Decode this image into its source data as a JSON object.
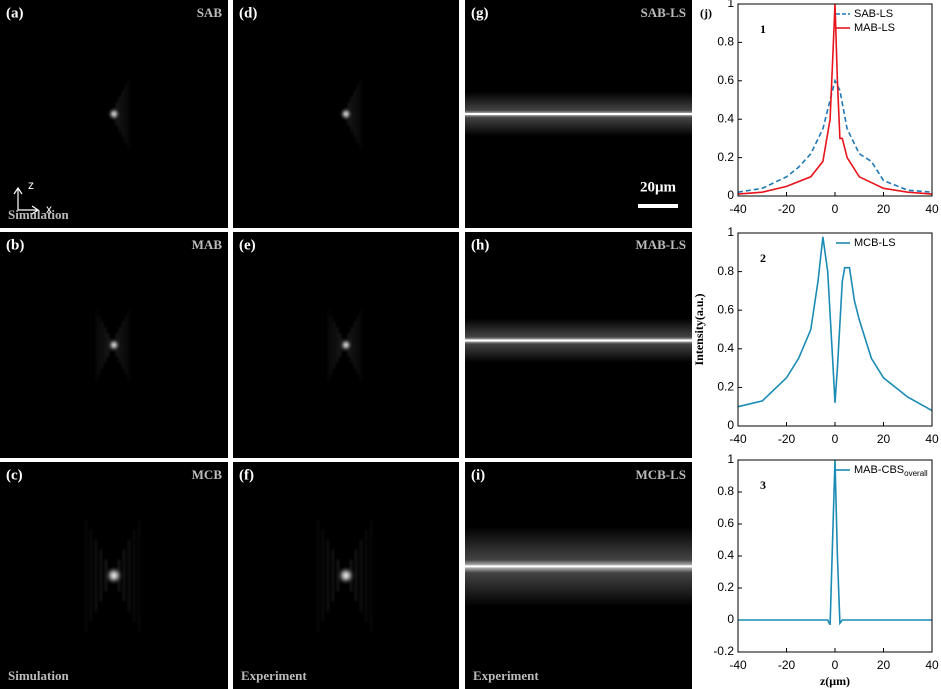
{
  "panels": [
    {
      "label": "(a)",
      "name": "SAB",
      "footer": "Simulation",
      "axis_z": "z",
      "axis_x": "x"
    },
    {
      "label": "(b)",
      "name": "MAB"
    },
    {
      "label": "(c)",
      "name": "MCB",
      "footer": "Simulation"
    },
    {
      "label": "(d)"
    },
    {
      "label": "(e)"
    },
    {
      "label": "(f)",
      "footer": "Experiment"
    },
    {
      "label": "(g)",
      "name": "SAB-LS",
      "scalebar": "20μm"
    },
    {
      "label": "(h)",
      "name": "MAB-LS"
    },
    {
      "label": "(i)",
      "name": "MCB-LS",
      "footer": "Experiment"
    }
  ],
  "chart_data": [
    {
      "type": "line",
      "panel_label": "(j)",
      "annotation": "1",
      "xlim": [
        -40,
        40
      ],
      "xticks": [
        -40,
        -20,
        0,
        20,
        40
      ],
      "ylim": [
        0,
        1
      ],
      "yticks": [
        0,
        0.2,
        0.4,
        0.6,
        0.8,
        1
      ],
      "legend": "upper right",
      "series": [
        {
          "name": "SAB-LS",
          "color": "#1f77b4",
          "style": "dashed",
          "x": [
            -40,
            -30,
            -20,
            -15,
            -10,
            -5,
            -2,
            0,
            2,
            5,
            10,
            15,
            20,
            30,
            40
          ],
          "values": [
            0.02,
            0.04,
            0.1,
            0.15,
            0.22,
            0.35,
            0.5,
            0.6,
            0.55,
            0.35,
            0.22,
            0.18,
            0.08,
            0.03,
            0.02
          ]
        },
        {
          "name": "MAB-LS",
          "color": "#e8141c",
          "style": "solid",
          "x": [
            -40,
            -30,
            -20,
            -10,
            -5,
            -2,
            -1,
            0,
            1,
            2,
            3,
            5,
            10,
            20,
            30,
            40
          ],
          "values": [
            0.01,
            0.02,
            0.05,
            0.1,
            0.18,
            0.4,
            0.7,
            1,
            0.6,
            0.3,
            0.3,
            0.2,
            0.1,
            0.04,
            0.02,
            0.01
          ]
        }
      ]
    },
    {
      "type": "line",
      "annotation": "2",
      "ylabel": "Intensity(a.u.)",
      "xlim": [
        -40,
        40
      ],
      "xticks": [
        -40,
        -20,
        0,
        20,
        40
      ],
      "ylim": [
        0,
        1
      ],
      "yticks": [
        0,
        0.2,
        0.4,
        0.6,
        0.8,
        1
      ],
      "legend": "upper right",
      "series": [
        {
          "name": "MCB-LS",
          "color": "#1a8bb5",
          "style": "solid",
          "x": [
            -40,
            -30,
            -20,
            -15,
            -10,
            -7,
            -5,
            -3,
            -1,
            0,
            1,
            3,
            4,
            6,
            8,
            10,
            15,
            20,
            30,
            40
          ],
          "values": [
            0.1,
            0.13,
            0.25,
            0.35,
            0.5,
            0.75,
            0.98,
            0.8,
            0.35,
            0.12,
            0.3,
            0.75,
            0.82,
            0.82,
            0.65,
            0.55,
            0.35,
            0.25,
            0.15,
            0.08
          ]
        }
      ]
    },
    {
      "type": "line",
      "annotation": "3",
      "xlabel": "z(μm)",
      "xlim": [
        -40,
        40
      ],
      "xticks": [
        -40,
        -20,
        0,
        20,
        40
      ],
      "ylim": [
        -0.2,
        1
      ],
      "yticks": [
        -0.2,
        0,
        0.2,
        0.4,
        0.6,
        0.8,
        1
      ],
      "legend": "upper right",
      "series": [
        {
          "name": "MAB-CBS",
          "name_sub": "overall",
          "color": "#1a8bb5",
          "style": "solid",
          "x": [
            -40,
            -3,
            -2,
            -1,
            0,
            1,
            2,
            3,
            40
          ],
          "values": [
            0,
            0,
            -0.03,
            0.5,
            1,
            0.4,
            -0.02,
            0,
            0
          ]
        }
      ]
    }
  ]
}
